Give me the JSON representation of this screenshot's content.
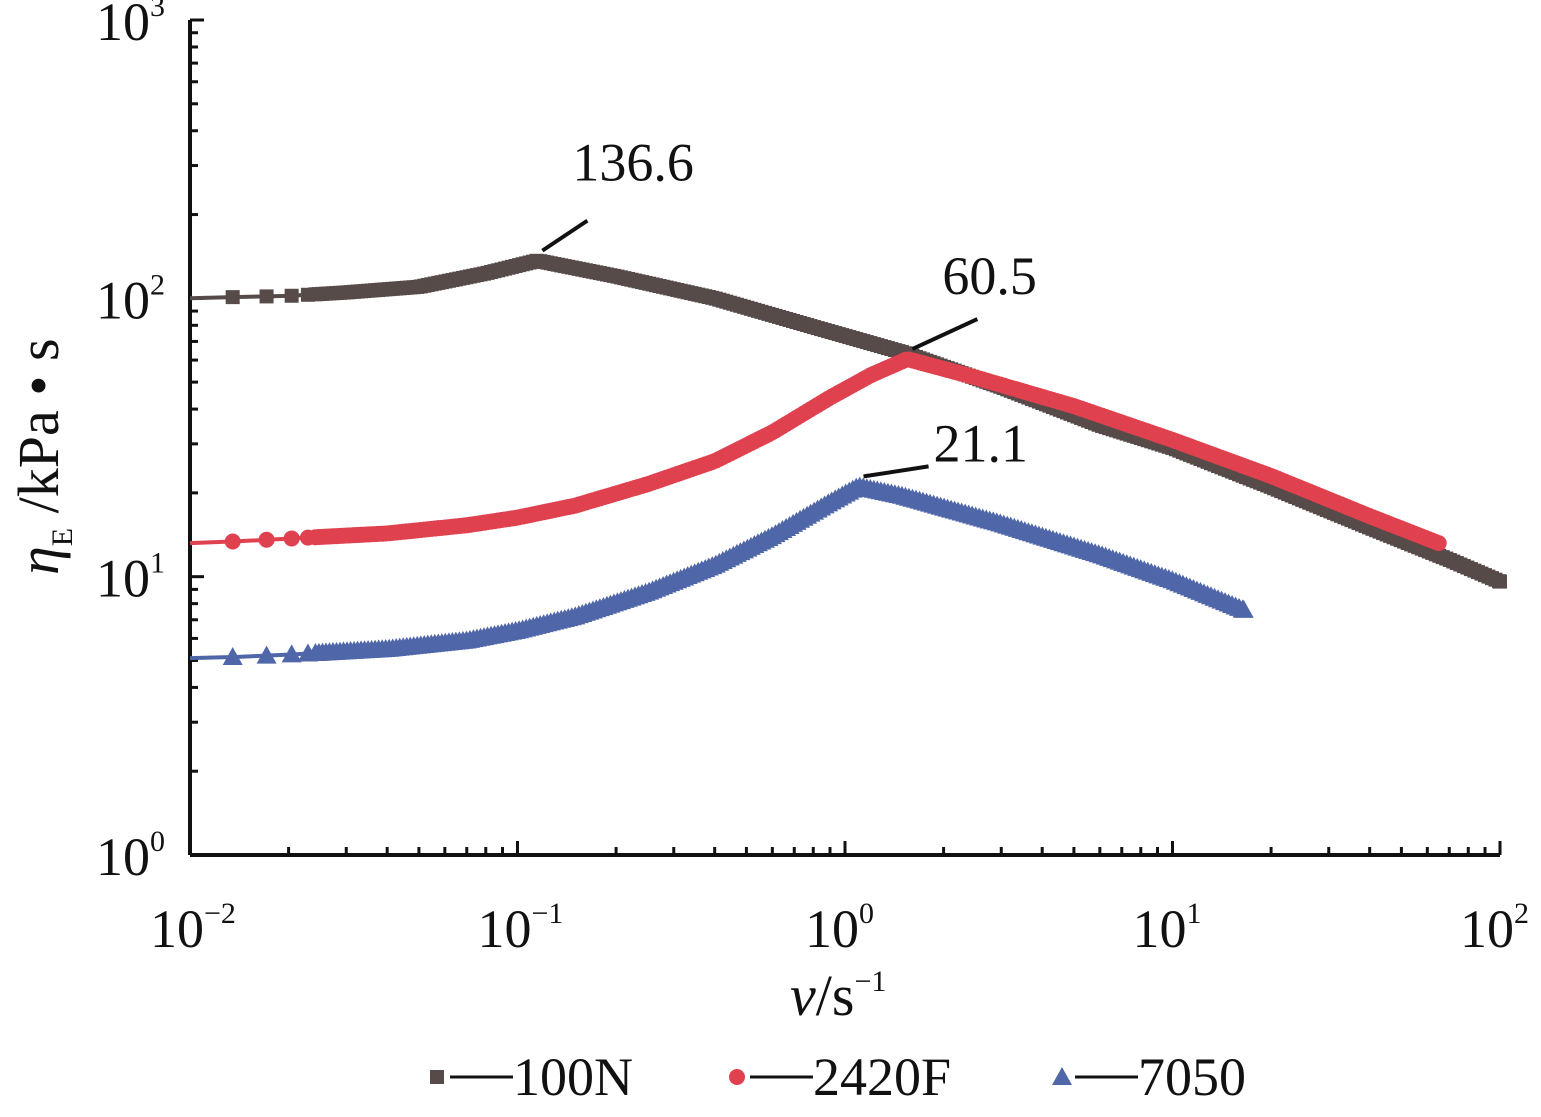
{
  "chart_data": {
    "type": "line",
    "xscale": "log",
    "yscale": "log",
    "xlim": [
      0.01,
      100
    ],
    "ylim": [
      1,
      1000
    ],
    "grid": false,
    "legend_position": "bottom",
    "xlabel": {
      "var": "v",
      "rest": "/s",
      "sup": "−1"
    },
    "ylabel": {
      "var": "η",
      "sub": "E",
      "rest": " /kPa • s"
    },
    "x_ticks": [
      {
        "base": "10",
        "exp": "−2"
      },
      {
        "base": "10",
        "exp": "−1"
      },
      {
        "base": "10",
        "exp": "0"
      },
      {
        "base": "10",
        "exp": "1"
      },
      {
        "base": "10",
        "exp": "2"
      }
    ],
    "y_ticks": [
      {
        "base": "10",
        "exp": "0"
      },
      {
        "base": "10",
        "exp": "1"
      },
      {
        "base": "10",
        "exp": "2"
      },
      {
        "base": "10",
        "exp": "3"
      }
    ],
    "series": [
      {
        "name": "100N",
        "color": "#574b49",
        "marker": "square",
        "x": [
          0.01,
          0.0135,
          0.02,
          0.03,
          0.05,
          0.08,
          0.115,
          0.2,
          0.4,
          0.8,
          1.5,
          3,
          6,
          10,
          20,
          40,
          70,
          100
        ],
        "y": [
          100,
          101,
          102,
          105,
          110,
          123,
          136.6,
          120,
          100,
          79,
          64,
          48,
          35,
          29,
          21,
          15,
          11.5,
          9.6
        ]
      },
      {
        "name": "2420F",
        "color": "#e0414f",
        "marker": "circle",
        "x": [
          0.01,
          0.014,
          0.02,
          0.04,
          0.07,
          0.1,
          0.15,
          0.25,
          0.4,
          0.6,
          0.9,
          1.2,
          1.55,
          2.5,
          5,
          10,
          20,
          40,
          65
        ],
        "y": [
          13.2,
          13.4,
          13.7,
          14.3,
          15.3,
          16.3,
          18,
          21.5,
          26,
          33,
          44,
          53,
          60.5,
          52,
          41,
          31,
          23,
          16.5,
          13.2
        ]
      },
      {
        "name": "7050",
        "color": "#4f67a8",
        "marker": "triangle",
        "x": [
          0.01,
          0.014,
          0.02,
          0.04,
          0.07,
          0.1,
          0.15,
          0.25,
          0.4,
          0.6,
          0.9,
          1.1,
          1.5,
          3,
          6,
          10,
          16.5
        ],
        "y": [
          5.1,
          5.15,
          5.25,
          5.5,
          5.9,
          6.4,
          7.2,
          8.8,
          11,
          14,
          18.5,
          21.1,
          19.5,
          15.5,
          12,
          9.7,
          7.6
        ]
      }
    ],
    "annotations": [
      {
        "text": "136.6",
        "x": 0.115,
        "y": 136.6
      },
      {
        "text": "60.5",
        "x": 1.55,
        "y": 60.5
      },
      {
        "text": "21.1",
        "x": 1.1,
        "y": 21.1
      }
    ]
  }
}
